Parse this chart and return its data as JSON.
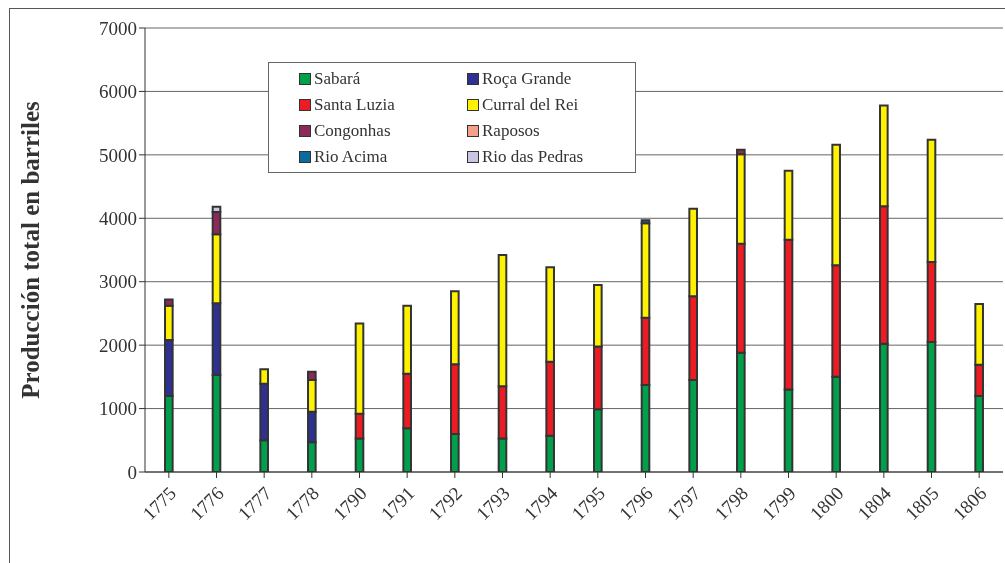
{
  "chart_data": {
    "type": "bar",
    "stacked": true,
    "ylabel": "Producción total en barriles",
    "categories": [
      "1775",
      "1776",
      "1777",
      "1778",
      "1790",
      "1791",
      "1792",
      "1793",
      "1794",
      "1795",
      "1796",
      "1797",
      "1798",
      "1799",
      "1800",
      "1804",
      "1805",
      "1806"
    ],
    "series": [
      {
        "name": "Sabará",
        "color": "#00a04b",
        "values": [
          1200,
          1530,
          500,
          470,
          530,
          690,
          600,
          530,
          570,
          990,
          1370,
          1450,
          1880,
          1300,
          1500,
          2020,
          2050,
          1200
        ]
      },
      {
        "name": "Roça Grande",
        "color": "#2e3192",
        "values": [
          880,
          1130,
          890,
          480,
          null,
          null,
          null,
          null,
          null,
          null,
          null,
          null,
          null,
          null,
          null,
          null,
          null,
          null
        ]
      },
      {
        "name": "Santa Luzia",
        "color": "#ed1c24",
        "values": [
          null,
          null,
          null,
          null,
          390,
          860,
          1100,
          820,
          1170,
          990,
          1060,
          1320,
          1720,
          2360,
          1760,
          2170,
          1260,
          490
        ]
      },
      {
        "name": "Curral del Rei",
        "color": "#fff200",
        "values": [
          540,
          1090,
          230,
          500,
          1420,
          1070,
          1150,
          2070,
          1490,
          970,
          1490,
          1380,
          1410,
          1090,
          1900,
          1590,
          1930,
          960
        ]
      },
      {
        "name": "Congonhas",
        "color": "#8b2a5a",
        "values": [
          100,
          350,
          null,
          130,
          null,
          null,
          null,
          null,
          null,
          null,
          null,
          null,
          70,
          null,
          null,
          null,
          null,
          null
        ]
      },
      {
        "name": "Raposos",
        "color": "#f4a08a",
        "values": [
          null,
          null,
          null,
          null,
          null,
          null,
          null,
          null,
          null,
          null,
          null,
          null,
          null,
          null,
          null,
          null,
          null,
          null
        ]
      },
      {
        "name": "Rio Acima",
        "color": "#0a6a9c",
        "values": [
          null,
          null,
          null,
          null,
          null,
          null,
          null,
          null,
          null,
          null,
          50,
          null,
          null,
          null,
          null,
          null,
          null,
          null
        ]
      },
      {
        "name": "Rio das Pedras",
        "color": "#c8c6e2",
        "values": [
          null,
          80,
          null,
          null,
          null,
          null,
          null,
          null,
          null,
          null,
          null,
          null,
          null,
          null,
          null,
          null,
          null,
          null
        ]
      }
    ],
    "ylim": [
      0,
      7000
    ],
    "yticks": [
      0,
      1000,
      2000,
      3000,
      4000,
      5000,
      6000,
      7000
    ],
    "grid": "y",
    "legend": "top"
  }
}
